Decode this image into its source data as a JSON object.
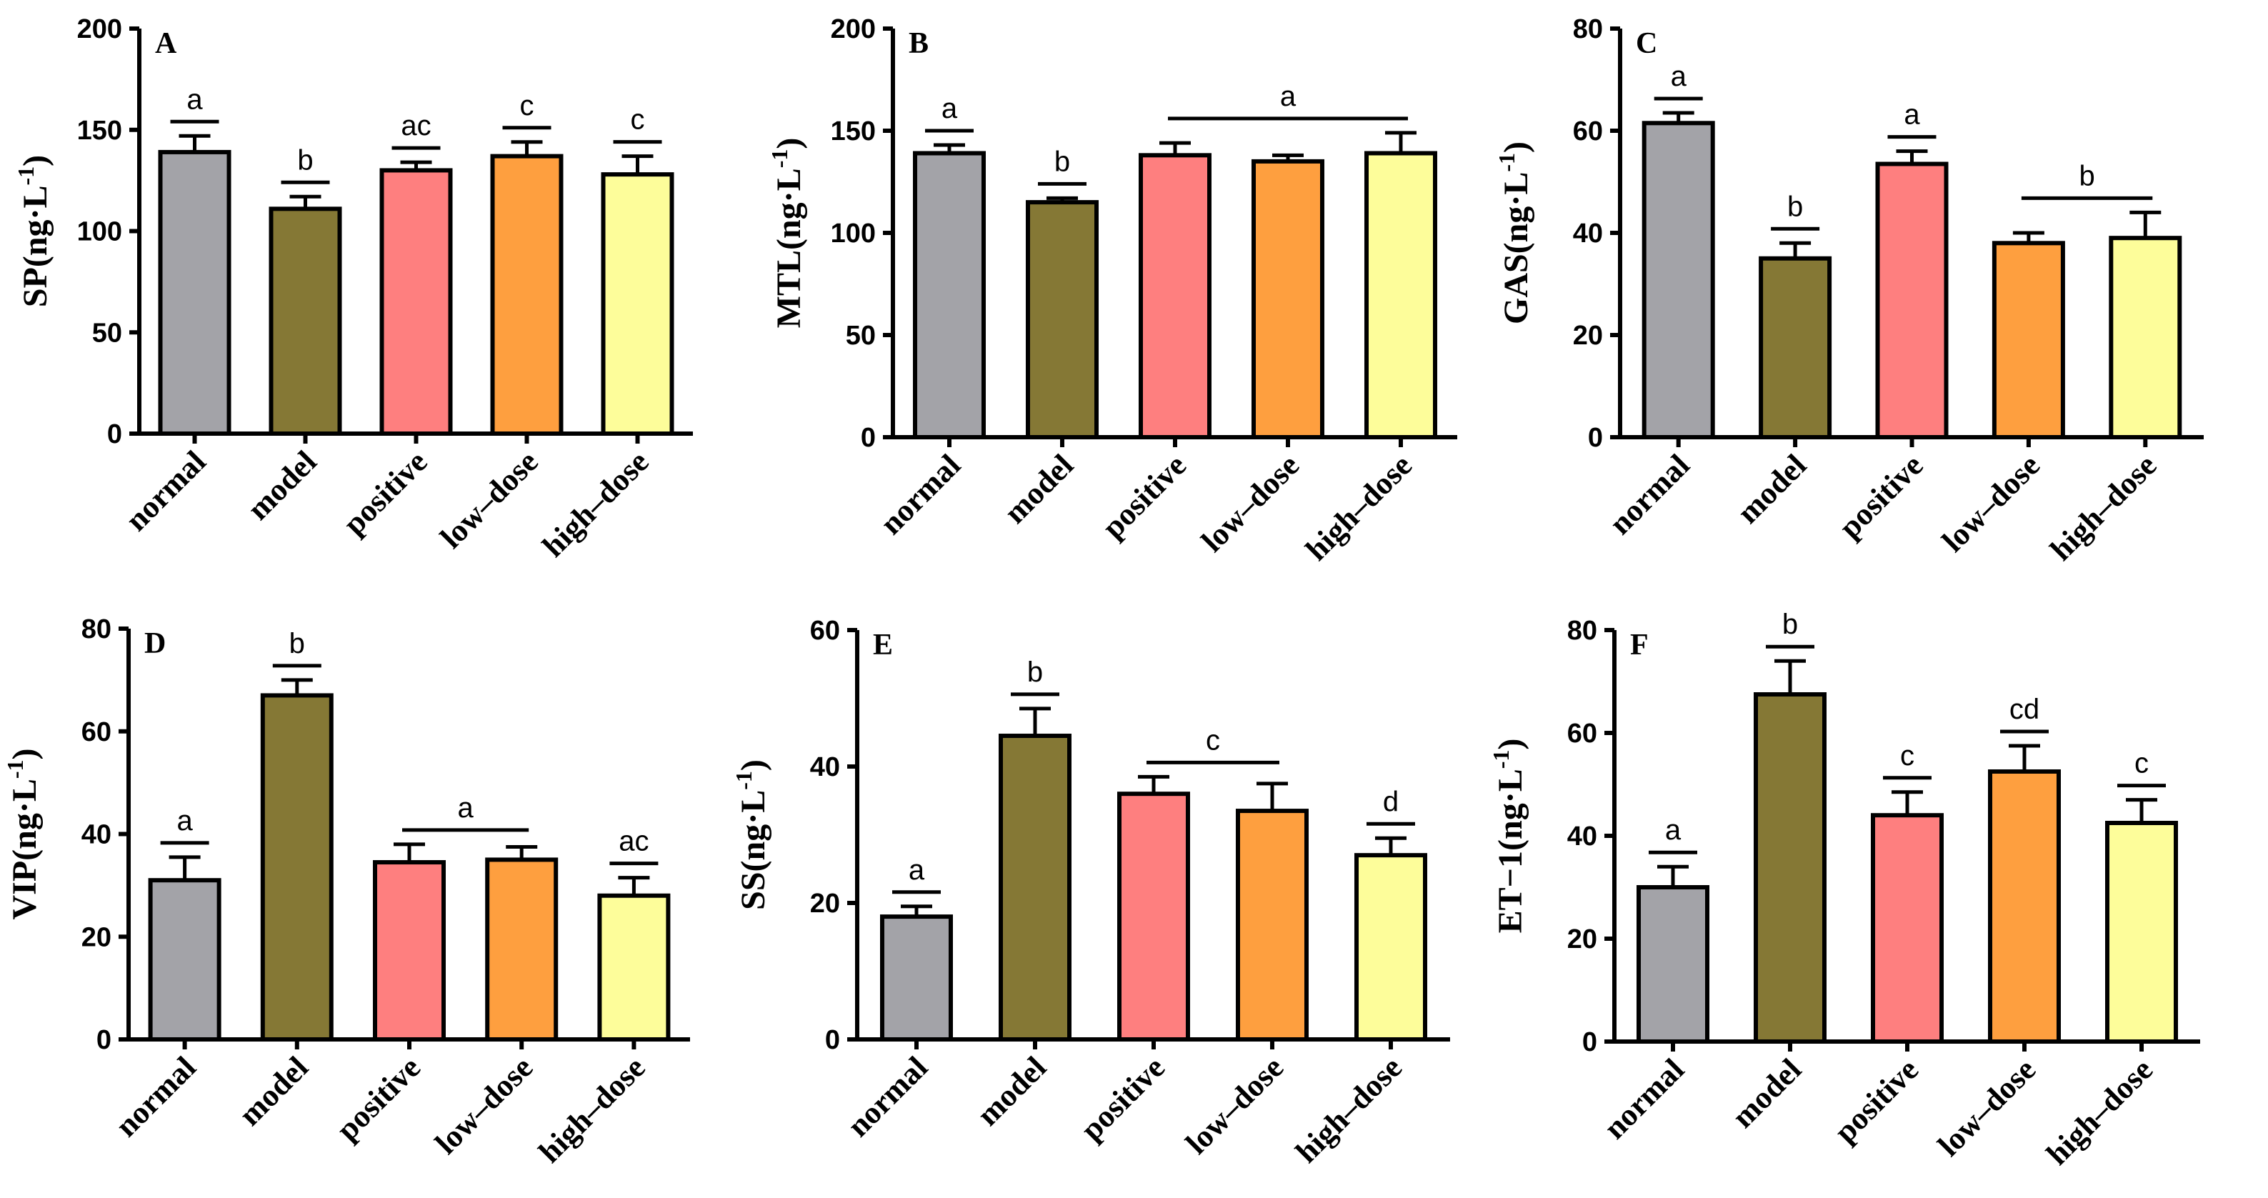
{
  "categories": [
    "normal",
    "model",
    "positive",
    "low–dose",
    "high–dose"
  ],
  "colors": [
    "#a3a3a8",
    "#857835",
    "#fe7f7f",
    "#fe9f3f",
    "#fdfd9a"
  ],
  "chart_data": [
    {
      "type": "bar",
      "panel": "A",
      "ylabel": "SP(ng·L",
      "ylabel_sup": "-1",
      "ylabel_close": ")",
      "ylim": [
        0,
        200
      ],
      "yticks": [
        0,
        50,
        100,
        150,
        200
      ],
      "categories": [
        "normal",
        "model",
        "positive",
        "low–dose",
        "high–dose"
      ],
      "values": [
        139,
        111,
        130,
        137,
        128
      ],
      "errors": [
        8,
        6,
        4,
        7,
        9
      ],
      "significance": [
        {
          "from": 0,
          "to": 0,
          "label": "a"
        },
        {
          "from": 1,
          "to": 1,
          "label": "b"
        },
        {
          "from": 2,
          "to": 2,
          "label": "ac"
        },
        {
          "from": 3,
          "to": 3,
          "label": "c"
        },
        {
          "from": 4,
          "to": 4,
          "label": "c"
        }
      ]
    },
    {
      "type": "bar",
      "panel": "B",
      "ylabel": "MTL(ng·L",
      "ylabel_sup": "-1",
      "ylabel_close": ")",
      "ylim": [
        0,
        200
      ],
      "yticks": [
        0,
        50,
        100,
        150,
        200
      ],
      "categories": [
        "normal",
        "model",
        "positive",
        "low–dose",
        "high–dose"
      ],
      "values": [
        139,
        115,
        138,
        135,
        139
      ],
      "errors": [
        4,
        2,
        6,
        3,
        10
      ],
      "significance": [
        {
          "from": 0,
          "to": 0,
          "label": "a"
        },
        {
          "from": 1,
          "to": 1,
          "label": "b"
        },
        {
          "from": 2,
          "to": 4,
          "label": "a"
        }
      ]
    },
    {
      "type": "bar",
      "panel": "C",
      "ylabel": "GAS(ng·L",
      "ylabel_sup": "-1",
      "ylabel_close": ")",
      "ylim": [
        0,
        80
      ],
      "yticks": [
        0,
        20,
        40,
        60,
        80
      ],
      "categories": [
        "normal",
        "model",
        "positive",
        "low–dose",
        "high–dose"
      ],
      "values": [
        61.5,
        35,
        53.5,
        38,
        39
      ],
      "errors": [
        2,
        3,
        2.5,
        2,
        5
      ],
      "significance": [
        {
          "from": 0,
          "to": 0,
          "label": "a"
        },
        {
          "from": 1,
          "to": 1,
          "label": "b"
        },
        {
          "from": 2,
          "to": 2,
          "label": "a"
        },
        {
          "from": 3,
          "to": 4,
          "label": "b"
        }
      ]
    },
    {
      "type": "bar",
      "panel": "D",
      "ylabel": "VIP(ng·L",
      "ylabel_sup": "-1",
      "ylabel_close": ")",
      "ylim": [
        0,
        80
      ],
      "yticks": [
        0,
        20,
        40,
        60,
        80
      ],
      "categories": [
        "normal",
        "model",
        "positive",
        "low–dose",
        "high–dose"
      ],
      "values": [
        31,
        67,
        34.5,
        35,
        28
      ],
      "errors": [
        4.5,
        3,
        3.5,
        2.5,
        3.5
      ],
      "significance": [
        {
          "from": 0,
          "to": 0,
          "label": "a"
        },
        {
          "from": 1,
          "to": 1,
          "label": "b"
        },
        {
          "from": 2,
          "to": 3,
          "label": "a"
        },
        {
          "from": 4,
          "to": 4,
          "label": "ac"
        }
      ]
    },
    {
      "type": "bar",
      "panel": "E",
      "ylabel": "SS(ng·L",
      "ylabel_sup": "-1",
      "ylabel_close": ")",
      "ylim": [
        0,
        60
      ],
      "yticks": [
        0,
        20,
        40,
        60
      ],
      "categories": [
        "normal",
        "model",
        "positive",
        "low–dose",
        "high–dose"
      ],
      "values": [
        18,
        44.5,
        36,
        33.5,
        27
      ],
      "errors": [
        1.5,
        4,
        2.5,
        4,
        2.5
      ],
      "significance": [
        {
          "from": 0,
          "to": 0,
          "label": "a"
        },
        {
          "from": 1,
          "to": 1,
          "label": "b"
        },
        {
          "from": 2,
          "to": 3,
          "label": "c"
        },
        {
          "from": 4,
          "to": 4,
          "label": "d"
        }
      ]
    },
    {
      "type": "bar",
      "panel": "F",
      "ylabel": "ET−1(ng·L",
      "ylabel_sup": "-1",
      "ylabel_close": ")",
      "ylim": [
        0,
        80
      ],
      "yticks": [
        0,
        20,
        40,
        60,
        80
      ],
      "categories": [
        "normal",
        "model",
        "positive",
        "low–dose",
        "high–dose"
      ],
      "values": [
        30,
        67.5,
        44,
        52.5,
        42.5
      ],
      "errors": [
        4,
        6.5,
        4.5,
        5,
        4.5
      ],
      "significance": [
        {
          "from": 0,
          "to": 0,
          "label": "a"
        },
        {
          "from": 1,
          "to": 1,
          "label": "b"
        },
        {
          "from": 2,
          "to": 2,
          "label": "c"
        },
        {
          "from": 3,
          "to": 3,
          "label": "cd"
        },
        {
          "from": 4,
          "to": 4,
          "label": "c"
        }
      ]
    }
  ]
}
